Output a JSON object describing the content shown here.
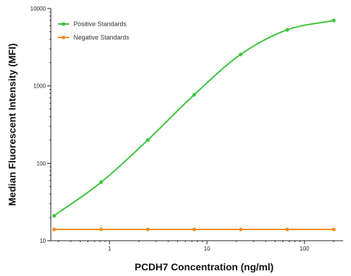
{
  "chart_data": {
    "type": "line",
    "title": "",
    "xlabel": "PCDH7 Concentration (ng/ml)",
    "ylabel": "Median Fluorescent Intensity (MFI)",
    "x_scale": "log",
    "y_scale": "log",
    "xlim": [
      0.25,
      250
    ],
    "ylim": [
      10,
      10000
    ],
    "x_tick_values": [
      1,
      10,
      100
    ],
    "x_tick_labels": [
      "1",
      "10",
      "100"
    ],
    "y_tick_values": [
      10,
      100,
      1000,
      10000
    ],
    "y_tick_labels": [
      "10",
      "100",
      "1000",
      "10000"
    ],
    "grid": false,
    "legend_position": "top-left",
    "series": [
      {
        "name": "Positive Standards",
        "color": "#3cc43c",
        "curve": "fitted-sigmoid",
        "x": [
          0.27,
          0.82,
          2.47,
          7.4,
          22.2,
          66.7,
          200
        ],
        "y": [
          21,
          57,
          200,
          770,
          2550,
          5300,
          7000
        ]
      },
      {
        "name": "Negative Standards",
        "color": "#f0901e",
        "curve": "straight",
        "x": [
          0.27,
          0.82,
          2.47,
          7.4,
          22.2,
          66.7,
          200
        ],
        "y": [
          14,
          14,
          14,
          14,
          14,
          14,
          14
        ]
      }
    ]
  }
}
